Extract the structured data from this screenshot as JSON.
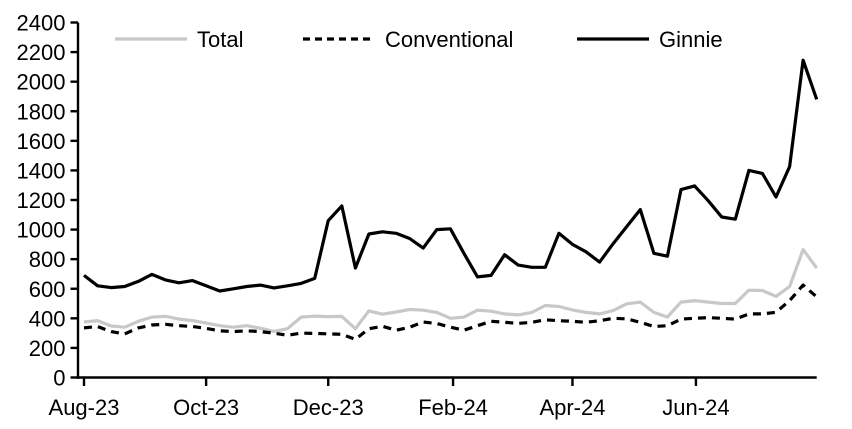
{
  "chart_data": {
    "type": "line",
    "title": "",
    "grid": "off",
    "legend_position": "top",
    "x_axis": {
      "tick_labels": [
        "Aug-23",
        "Oct-23",
        "Dec-23",
        "Feb-24",
        "Apr-24",
        "Jun-24"
      ],
      "tick_weeks": [
        0,
        9,
        18,
        27.2,
        36,
        45.1
      ],
      "weeks_domain": [
        0,
        54
      ],
      "frequency": "weekly"
    },
    "y_axis": {
      "min": 0,
      "max": 2400,
      "step": 200
    },
    "series": [
      {
        "name": "total",
        "label": "Total",
        "color": "#c8c8c8",
        "dash": "solid",
        "values": [
          375,
          385,
          348,
          340,
          380,
          408,
          414,
          395,
          385,
          368,
          350,
          340,
          350,
          333,
          312,
          330,
          408,
          415,
          412,
          413,
          330,
          450,
          428,
          443,
          460,
          455,
          440,
          400,
          408,
          455,
          448,
          430,
          423,
          440,
          487,
          480,
          457,
          440,
          430,
          452,
          498,
          510,
          440,
          408,
          510,
          520,
          510,
          500,
          500,
          590,
          588,
          548,
          615,
          865,
          740
        ]
      },
      {
        "name": "conventional",
        "label": "Conventional",
        "color": "#000000",
        "dash": "dashed",
        "values": [
          335,
          345,
          310,
          295,
          335,
          355,
          360,
          350,
          345,
          332,
          316,
          310,
          316,
          310,
          300,
          285,
          300,
          298,
          295,
          292,
          258,
          330,
          346,
          320,
          340,
          375,
          365,
          340,
          320,
          350,
          380,
          373,
          366,
          373,
          390,
          384,
          380,
          373,
          384,
          400,
          396,
          373,
          345,
          350,
          395,
          400,
          405,
          400,
          395,
          430,
          430,
          441,
          520,
          625,
          545
        ]
      },
      {
        "name": "ginnie",
        "label": "Ginnie",
        "color": "#000000",
        "dash": "solid",
        "values": [
          690,
          620,
          608,
          615,
          650,
          697,
          660,
          640,
          655,
          620,
          585,
          600,
          615,
          625,
          606,
          620,
          636,
          670,
          1060,
          1160,
          740,
          970,
          985,
          975,
          940,
          875,
          1000,
          1005,
          840,
          680,
          690,
          830,
          760,
          745,
          745,
          975,
          900,
          850,
          780,
          905,
          1020,
          1135,
          840,
          820,
          1270,
          1295,
          1195,
          1085,
          1070,
          1400,
          1380,
          1220,
          1425,
          2145,
          1880
        ]
      }
    ],
    "colors": {
      "axis": "#000000",
      "background": "#ffffff"
    }
  }
}
